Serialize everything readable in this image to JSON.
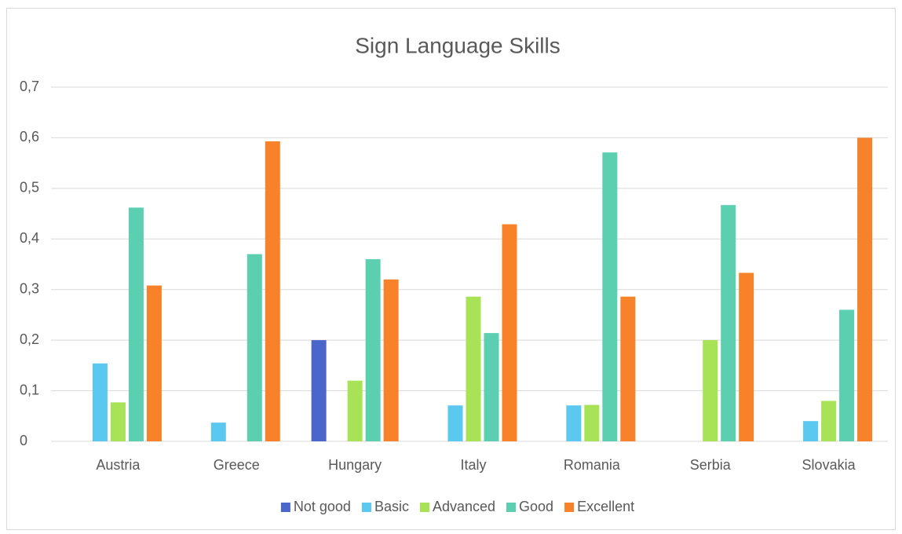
{
  "chart_data": {
    "type": "bar",
    "title": "Sign Language Skills",
    "categories": [
      "Austria",
      "Greece",
      "Hungary",
      "Italy",
      "Romania",
      "Serbia",
      "Slovakia"
    ],
    "series": [
      {
        "name": "Not good",
        "color": "#4a66c8",
        "values": [
          0,
          0,
          0.2,
          0,
          0,
          0,
          0
        ]
      },
      {
        "name": "Basic",
        "color": "#5bc8f0",
        "values": [
          0.154,
          0.037,
          0,
          0.071,
          0.071,
          0,
          0.04
        ]
      },
      {
        "name": "Advanced",
        "color": "#a8e256",
        "values": [
          0.077,
          0,
          0.12,
          0.286,
          0.072,
          0.2,
          0.08
        ]
      },
      {
        "name": "Good",
        "color": "#5ccfb0",
        "values": [
          0.462,
          0.37,
          0.36,
          0.214,
          0.571,
          0.467,
          0.26
        ]
      },
      {
        "name": "Excellent",
        "color": "#f7822a",
        "values": [
          0.308,
          0.593,
          0.32,
          0.429,
          0.286,
          0.333,
          0.6
        ]
      }
    ],
    "ylim": [
      0,
      0.7
    ],
    "yticks": [
      0,
      {
        "value": 0.1,
        "label": "0,1"
      },
      {
        "value": 0.2,
        "label": "0,2"
      },
      {
        "value": 0.3,
        "label": "0,3"
      },
      {
        "value": 0.4,
        "label": "0,4"
      },
      {
        "value": 0.5,
        "label": "0,5"
      },
      {
        "value": 0.6,
        "label": "0,6"
      },
      {
        "value": 0.7,
        "label": "0,7"
      }
    ],
    "grid": true,
    "legend": "bottom"
  }
}
